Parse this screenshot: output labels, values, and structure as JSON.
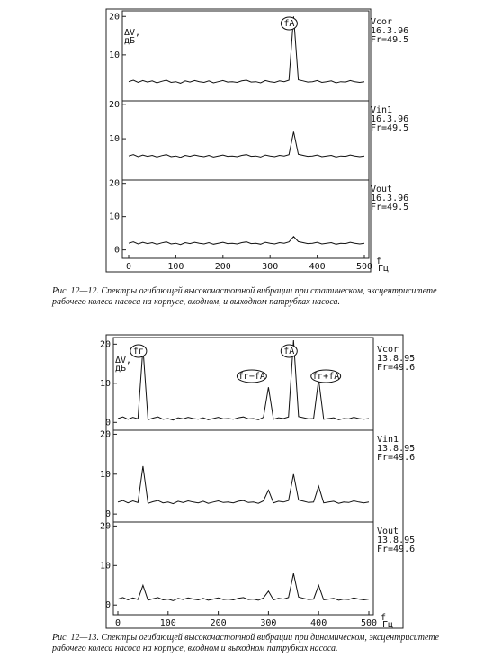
{
  "chart_data": [
    {
      "type": "line",
      "x": [
        0,
        10,
        20,
        30,
        40,
        50,
        60,
        70,
        80,
        90,
        100,
        110,
        120,
        130,
        140,
        150,
        160,
        170,
        180,
        190,
        200,
        210,
        220,
        230,
        240,
        250,
        260,
        270,
        280,
        290,
        300,
        310,
        320,
        330,
        340,
        350,
        360,
        370,
        380,
        390,
        400,
        410,
        420,
        430,
        440,
        450,
        460,
        470,
        480,
        490,
        500
      ],
      "values": [
        3,
        3.4,
        2.8,
        3.3,
        2.9,
        3.2,
        2.7,
        3.1,
        3.4,
        2.8,
        3,
        2.6,
        3.2,
        2.9,
        3.3,
        3,
        2.8,
        3.2,
        2.7,
        3,
        3.3,
        2.9,
        3,
        2.8,
        3.2,
        3.4,
        2.9,
        3,
        2.7,
        3.3,
        3,
        2.8,
        3.2,
        3,
        3.4,
        20,
        3.5,
        3.2,
        2.9,
        3,
        3.3,
        2.8,
        3,
        3.2,
        2.7,
        3,
        2.9,
        3.3,
        3,
        2.8,
        3
      ],
      "xlim": [
        0,
        500
      ],
      "ylim": [
        -2,
        21
      ],
      "yticks": [
        10,
        20
      ],
      "ylabel_lines": [
        "ΔV,",
        "дБ"
      ],
      "label_lines": [
        "Vcor",
        "16.3.96",
        "Fr=49.5"
      ],
      "annotations": [
        "fА"
      ]
    },
    {
      "type": "line",
      "x": [
        0,
        10,
        20,
        30,
        40,
        50,
        60,
        70,
        80,
        90,
        100,
        110,
        120,
        130,
        140,
        150,
        160,
        170,
        180,
        190,
        200,
        210,
        220,
        230,
        240,
        250,
        260,
        270,
        280,
        290,
        300,
        310,
        320,
        330,
        340,
        350,
        360,
        370,
        380,
        390,
        400,
        410,
        420,
        430,
        440,
        450,
        460,
        470,
        480,
        490,
        500
      ],
      "values": [
        5,
        5.4,
        4.8,
        5.3,
        4.9,
        5.2,
        4.7,
        5.1,
        5.4,
        4.8,
        5,
        4.6,
        5.2,
        4.9,
        5.3,
        5,
        4.8,
        5.2,
        4.7,
        5,
        5.3,
        4.9,
        5,
        4.8,
        5.2,
        5.4,
        4.9,
        5,
        4.7,
        5.3,
        5,
        4.8,
        5.2,
        5,
        5.4,
        12,
        5.5,
        5.2,
        4.9,
        5,
        5.3,
        4.8,
        5,
        5.2,
        4.7,
        5,
        4.9,
        5.3,
        5,
        4.8,
        5
      ],
      "xlim": [
        0,
        500
      ],
      "ylim": [
        -2,
        21
      ],
      "yticks": [
        10,
        20
      ],
      "label_lines": [
        "Vin1",
        "16.3.96",
        "Fr=49.5"
      ]
    },
    {
      "type": "line",
      "x": [
        0,
        10,
        20,
        30,
        40,
        50,
        60,
        70,
        80,
        90,
        100,
        110,
        120,
        130,
        140,
        150,
        160,
        170,
        180,
        190,
        200,
        210,
        220,
        230,
        240,
        250,
        260,
        270,
        280,
        290,
        300,
        310,
        320,
        330,
        340,
        350,
        360,
        370,
        380,
        390,
        400,
        410,
        420,
        430,
        440,
        450,
        460,
        470,
        480,
        490,
        500
      ],
      "values": [
        2,
        2.4,
        1.8,
        2.3,
        1.9,
        2.2,
        1.7,
        2.1,
        2.4,
        1.8,
        2,
        1.6,
        2.2,
        1.9,
        2.3,
        2,
        1.8,
        2.2,
        1.7,
        2,
        2.3,
        1.9,
        2,
        1.8,
        2.2,
        2.4,
        1.9,
        2,
        1.7,
        2.3,
        2,
        1.8,
        2.2,
        2,
        2.4,
        4,
        2.5,
        2.2,
        1.9,
        2,
        2.3,
        1.8,
        2,
        2.2,
        1.7,
        2,
        1.9,
        2.3,
        2,
        1.8,
        2
      ],
      "xlim": [
        0,
        500
      ],
      "ylim": [
        -2,
        21
      ],
      "yticks": [
        0,
        10,
        20
      ],
      "xticks": [
        0,
        100,
        200,
        300,
        400,
        500
      ],
      "xlabel_lines": [
        "f",
        "Гц"
      ],
      "label_lines": [
        "Vout",
        "16.3.96",
        "Fr=49.5"
      ]
    },
    {
      "type": "line",
      "x": [
        0,
        10,
        20,
        30,
        40,
        50,
        60,
        70,
        80,
        90,
        100,
        110,
        120,
        130,
        140,
        150,
        160,
        170,
        180,
        190,
        200,
        210,
        220,
        230,
        240,
        250,
        260,
        270,
        280,
        290,
        300,
        310,
        320,
        330,
        340,
        350,
        360,
        370,
        380,
        390,
        400,
        410,
        420,
        430,
        440,
        450,
        460,
        470,
        480,
        490,
        500
      ],
      "values": [
        1,
        1.4,
        0.8,
        1.3,
        0.9,
        19,
        0.7,
        1.1,
        1.4,
        0.8,
        1,
        0.6,
        1.2,
        0.9,
        1.3,
        1,
        0.8,
        1.2,
        0.7,
        1,
        1.3,
        0.9,
        1,
        0.8,
        1.2,
        1.4,
        0.9,
        1,
        0.7,
        1.3,
        9,
        0.8,
        1.2,
        1,
        1.4,
        21,
        1.5,
        1.2,
        0.9,
        1,
        11,
        0.8,
        1,
        1.2,
        0.7,
        1,
        0.9,
        1.3,
        1,
        0.8,
        1
      ],
      "xlim": [
        0,
        500
      ],
      "ylim": [
        -2,
        21
      ],
      "yticks": [
        0,
        10,
        20
      ],
      "ylabel_lines": [
        "ΔV,",
        "дБ"
      ],
      "label_lines": [
        "Vcor",
        "13.8.95",
        "Fr=49.6"
      ],
      "annotations": [
        "fг",
        "fг−fА",
        "fА",
        "fг+fА"
      ]
    },
    {
      "type": "line",
      "x": [
        0,
        10,
        20,
        30,
        40,
        50,
        60,
        70,
        80,
        90,
        100,
        110,
        120,
        130,
        140,
        150,
        160,
        170,
        180,
        190,
        200,
        210,
        220,
        230,
        240,
        250,
        260,
        270,
        280,
        290,
        300,
        310,
        320,
        330,
        340,
        350,
        360,
        370,
        380,
        390,
        400,
        410,
        420,
        430,
        440,
        450,
        460,
        470,
        480,
        490,
        500
      ],
      "values": [
        3,
        3.4,
        2.8,
        3.3,
        2.9,
        12,
        2.7,
        3.1,
        3.4,
        2.8,
        3,
        2.6,
        3.2,
        2.9,
        3.3,
        3,
        2.8,
        3.2,
        2.7,
        3,
        3.3,
        2.9,
        3,
        2.8,
        3.2,
        3.4,
        2.9,
        3,
        2.7,
        3.3,
        6,
        2.8,
        3.2,
        3,
        3.4,
        10,
        3.5,
        3.2,
        2.9,
        3,
        7,
        2.8,
        3,
        3.2,
        2.7,
        3,
        2.9,
        3.3,
        3,
        2.8,
        3
      ],
      "xlim": [
        0,
        500
      ],
      "ylim": [
        -2,
        21
      ],
      "yticks": [
        0,
        10,
        20
      ],
      "label_lines": [
        "Vin1",
        "13.8.95",
        "Fr=49.6"
      ]
    },
    {
      "type": "line",
      "x": [
        0,
        10,
        20,
        30,
        40,
        50,
        60,
        70,
        80,
        90,
        100,
        110,
        120,
        130,
        140,
        150,
        160,
        170,
        180,
        190,
        200,
        210,
        220,
        230,
        240,
        250,
        260,
        270,
        280,
        290,
        300,
        310,
        320,
        330,
        340,
        350,
        360,
        370,
        380,
        390,
        400,
        410,
        420,
        430,
        440,
        450,
        460,
        470,
        480,
        490,
        500
      ],
      "values": [
        1.5,
        1.9,
        1.3,
        1.8,
        1.4,
        5,
        1.2,
        1.6,
        1.9,
        1.3,
        1.5,
        1.1,
        1.7,
        1.4,
        1.8,
        1.5,
        1.3,
        1.7,
        1.2,
        1.5,
        1.8,
        1.4,
        1.5,
        1.3,
        1.7,
        1.9,
        1.4,
        1.5,
        1.2,
        1.8,
        3.5,
        1.3,
        1.7,
        1.5,
        1.9,
        8,
        2,
        1.7,
        1.4,
        1.5,
        5,
        1.3,
        1.5,
        1.7,
        1.2,
        1.5,
        1.4,
        1.8,
        1.5,
        1.3,
        1.5
      ],
      "xlim": [
        0,
        500
      ],
      "ylim": [
        -2,
        21
      ],
      "yticks": [
        0,
        10,
        20
      ],
      "xticks": [
        0,
        100,
        200,
        300,
        400,
        500
      ],
      "xlabel_lines": [
        "f",
        "Гц"
      ],
      "label_lines": [
        "Vout",
        "13.8.95",
        "Fr=49.6"
      ]
    }
  ],
  "captions": [
    "Рис. 12—12. Спектры огибающей высокочастотной вибрации при статическом, эксцентриситете рабочего колеса насоса на корпусе, входном, и выходном патрубках насоса.",
    "Рис. 12—13. Спектры огибающей высокочастотной вибрации при динамическом, эксцентриситете рабочего колеса насоса на корпусе, входном и выходном патрубках насоса."
  ]
}
